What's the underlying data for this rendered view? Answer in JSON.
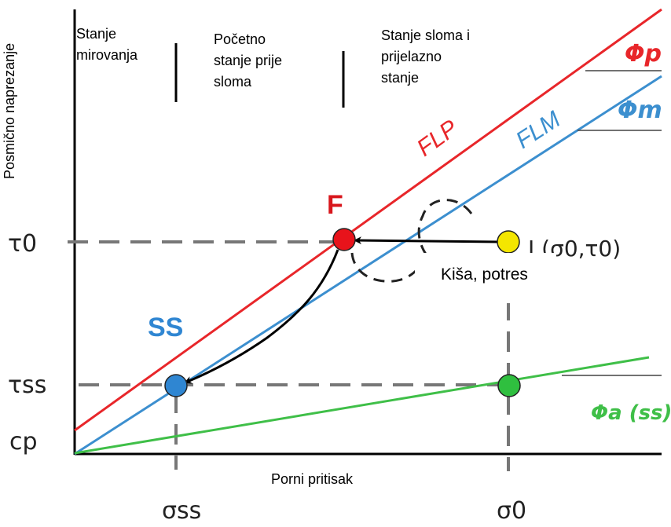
{
  "diagram": {
    "ylabel": "Posmično naprezanje",
    "xlabel": "Porni pritisak",
    "phases": [
      {
        "lines": [
          "Stanje",
          "mirovanja"
        ]
      },
      {
        "lines": [
          "Početno",
          "stanje prije",
          "sloma"
        ]
      },
      {
        "lines": [
          "Stanje sloma i",
          "prijelazno",
          "stanje"
        ]
      }
    ],
    "line_labels": {
      "flp": "FLP",
      "flm": "FLM",
      "phi_p": "Φp",
      "phi_m": "Φm",
      "phi_a": "Φa (ss)"
    },
    "points": {
      "f": "F",
      "ss": "SS",
      "i": "I (σ0,τ0)"
    },
    "annotation": "Kiša, potres",
    "tau0": "τ0",
    "tauss": "τss",
    "cp": "cp",
    "sigma_ss": "σss",
    "sigma0": "σ0",
    "colors": {
      "flp": "#e8262a",
      "flm": "#3c8fcf",
      "phi_a": "#3fbf48",
      "point_f": "#e8131b",
      "point_ss": "#2f86d2",
      "point_i": "#f4e600",
      "point_green": "#2fbf3f"
    }
  }
}
